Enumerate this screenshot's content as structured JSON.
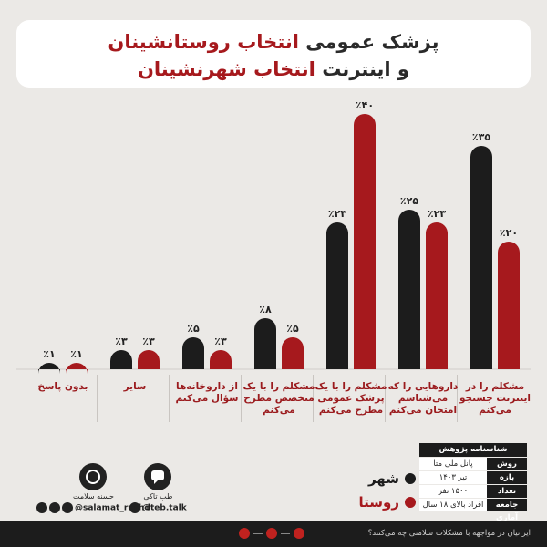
{
  "title": {
    "line1_dark": "پزشک عمومی",
    "line1_red": "انتخاب روستانشینان",
    "line2_dark": "و اینترنت",
    "line2_red": "انتخاب شهرنشینان"
  },
  "colors": {
    "city": "#1c1c1c",
    "village": "#a6191d"
  },
  "chart_data": {
    "type": "bar",
    "title": "پزشک عمومی انتخاب روستانشینان و اینترنت انتخاب شهرنشینان",
    "categories": [
      "مشکلم را در اینترنت جستجو می‌کنم",
      "داروهایی را که می‌شناسم امتحان می‌کنم",
      "مشکلم را با یک پزشک عمومی مطرح می‌کنم",
      "مشکلم را با یک متخصص مطرح می‌کنم",
      "از داروخانه‌ها سؤال می‌کنم",
      "سایر",
      "بدون پاسخ"
    ],
    "category_lines": [
      [
        "مشکلم را در",
        "اینترنت جستجو",
        "می‌کنم"
      ],
      [
        "داروهایی را که",
        "می‌شناسم",
        "امتحان می‌کنم"
      ],
      [
        "مشکلم را با یک",
        "پزشک عمومی",
        "مطرح می‌کنم"
      ],
      [
        "مشکلم را با یک",
        "متخصص مطرح",
        "می‌کنم"
      ],
      [
        "از داروخانه‌ها",
        "سؤال می‌کنم"
      ],
      [
        "سایر"
      ],
      [
        "بدون پاسخ"
      ]
    ],
    "series": [
      {
        "name": "شهر",
        "values": [
          35,
          25,
          23,
          8,
          5,
          3,
          1
        ],
        "labels": [
          "٪۳۵",
          "٪۲۵",
          "٪۲۳",
          "٪۸",
          "٪۵",
          "٪۳",
          "٪۱"
        ]
      },
      {
        "name": "روستا",
        "values": [
          20,
          23,
          40,
          5,
          3,
          3,
          1
        ],
        "labels": [
          "٪۲۰",
          "٪۲۳",
          "٪۴۰",
          "٪۵",
          "٪۳",
          "٪۳",
          "٪۱"
        ]
      }
    ],
    "ylim": [
      0,
      40
    ],
    "legend": "bottom-right"
  },
  "info": {
    "header": "شناسنامه پژوهش",
    "rows": [
      {
        "k": "روش",
        "v": "پانل ملی متا"
      },
      {
        "k": "بازه زمانی",
        "v": "تیر ۱۴۰۳"
      },
      {
        "k": "تعداد نمونه",
        "v": "۱۵۰۰ نفر"
      },
      {
        "k": "جامعه آماری",
        "v": "افراد بالای ۱۸ سال"
      }
    ]
  },
  "legend": {
    "city": "شهر",
    "village": "روستا"
  },
  "brands": {
    "tebtalk": {
      "logo_text": "طب تاکی",
      "handle": "@teb.talk"
    },
    "salamat": {
      "name": "حسنه سلامت",
      "handle": "@salamat_rushd"
    }
  },
  "footer": {
    "text": "ایرانیان در مواجهه با مشکلات سلامتی چه می‌کنند؟"
  }
}
